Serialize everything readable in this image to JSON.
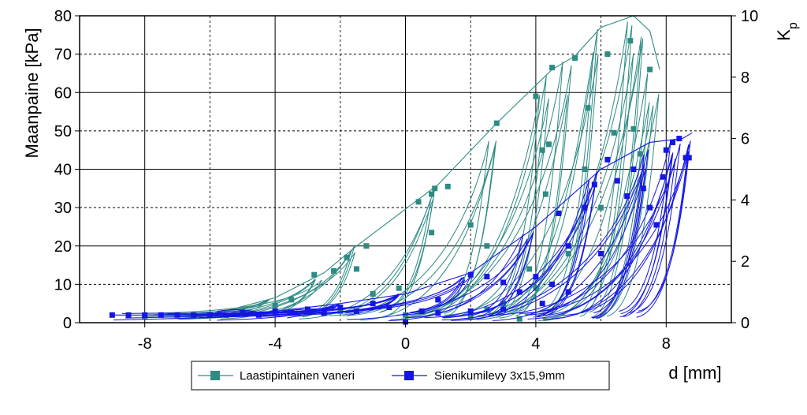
{
  "chart_data": {
    "type": "line",
    "xlabel": "d [mm]",
    "ylabel": "Maanpaine [kPa]",
    "y2label": "K",
    "y2label_sub": "p",
    "xlim": [
      -10,
      10
    ],
    "ylim": [
      0,
      80
    ],
    "y2lim": [
      0,
      10
    ],
    "xticks": [
      -8,
      -4,
      0,
      4,
      8
    ],
    "yticks": [
      0,
      10,
      20,
      30,
      40,
      50,
      60,
      70,
      80
    ],
    "y2ticks": [
      0,
      2,
      4,
      6,
      8,
      10
    ],
    "grid": true,
    "legend_position": "bottom-center",
    "series": [
      {
        "name": "Laastipintainen vaneri",
        "color": "#2e8b84",
        "marker": "square",
        "style": "hysteresis loops",
        "envelope": [
          {
            "x": -8.0,
            "y": 1.5
          },
          {
            "x": -6.0,
            "y": 2.0
          },
          {
            "x": -4.0,
            "y": 6.5
          },
          {
            "x": -2.5,
            "y": 13.0
          },
          {
            "x": -1.5,
            "y": 20.0
          },
          {
            "x": 1.0,
            "y": 36.0
          },
          {
            "x": 2.8,
            "y": 52.0
          },
          {
            "x": 4.5,
            "y": 66.0
          },
          {
            "x": 5.2,
            "y": 69.5
          },
          {
            "x": 6.0,
            "y": 77.0
          },
          {
            "x": 7.0,
            "y": 80.0
          },
          {
            "x": 7.5,
            "y": 76.0
          },
          {
            "x": 7.8,
            "y": 66.0
          }
        ],
        "markers": [
          {
            "x": -2.8,
            "y": 12.5
          },
          {
            "x": -2.2,
            "y": 13.5
          },
          {
            "x": -1.8,
            "y": 17.0
          },
          {
            "x": -1.5,
            "y": 14.0
          },
          {
            "x": -1.2,
            "y": 20.0
          },
          {
            "x": 0.8,
            "y": 33.5
          },
          {
            "x": 0.4,
            "y": 31.5
          },
          {
            "x": 0.9,
            "y": 35.0
          },
          {
            "x": 1.3,
            "y": 35.5
          },
          {
            "x": 2.8,
            "y": 52.0
          },
          {
            "x": 2.0,
            "y": 25.5
          },
          {
            "x": 4.0,
            "y": 59.0
          },
          {
            "x": 4.5,
            "y": 66.5
          },
          {
            "x": 5.2,
            "y": 69.0
          },
          {
            "x": 6.2,
            "y": 70.0
          },
          {
            "x": 6.9,
            "y": 73.5
          },
          {
            "x": 7.5,
            "y": 66.0
          },
          {
            "x": 5.6,
            "y": 56.0
          },
          {
            "x": 4.2,
            "y": 45.0
          },
          {
            "x": 4.4,
            "y": 46.5
          },
          {
            "x": 4.3,
            "y": 33.5
          },
          {
            "x": 6.4,
            "y": 49.5
          },
          {
            "x": 7.0,
            "y": 50.5
          },
          {
            "x": 7.2,
            "y": 44.0
          },
          {
            "x": 0.8,
            "y": 23.5
          },
          {
            "x": 2.5,
            "y": 20.0
          },
          {
            "x": -0.2,
            "y": 9.0
          },
          {
            "x": -1.0,
            "y": 7.5
          },
          {
            "x": 1.0,
            "y": 6.0
          },
          {
            "x": 3.0,
            "y": 5.0
          },
          {
            "x": 4.0,
            "y": 9.0
          },
          {
            "x": 5.0,
            "y": 18.0
          },
          {
            "x": 6.0,
            "y": 30.0
          },
          {
            "x": 5.5,
            "y": 40.0
          },
          {
            "x": -3.5,
            "y": 6.0
          },
          {
            "x": -5.0,
            "y": 3.0
          },
          {
            "x": -6.5,
            "y": 2.0
          },
          {
            "x": -8.0,
            "y": 1.5
          },
          {
            "x": -4.0,
            "y": 4.5
          },
          {
            "x": -2.0,
            "y": 3.0
          },
          {
            "x": 0.0,
            "y": 2.0
          },
          {
            "x": 2.0,
            "y": 1.5
          },
          {
            "x": 3.5,
            "y": 1.0
          },
          {
            "x": 2.5,
            "y": 3.5
          },
          {
            "x": 3.8,
            "y": 14.0
          }
        ]
      },
      {
        "name": "Sienikumilevy 3x15,9mm",
        "color": "#1515e6",
        "marker": "square",
        "style": "hysteresis loops",
        "envelope": [
          {
            "x": -9.0,
            "y": 2.0
          },
          {
            "x": -6.0,
            "y": 2.0
          },
          {
            "x": -4.0,
            "y": 3.0
          },
          {
            "x": -2.0,
            "y": 5.0
          },
          {
            "x": 0.0,
            "y": 7.5
          },
          {
            "x": 2.0,
            "y": 13.0
          },
          {
            "x": 4.0,
            "y": 25.0
          },
          {
            "x": 6.0,
            "y": 40.0
          },
          {
            "x": 7.5,
            "y": 47.0
          },
          {
            "x": 8.5,
            "y": 48.0
          },
          {
            "x": 8.8,
            "y": 49.5
          }
        ],
        "markers": [
          {
            "x": -9.0,
            "y": 2.0
          },
          {
            "x": -8.5,
            "y": 2.0
          },
          {
            "x": -8.0,
            "y": 2.0
          },
          {
            "x": -7.5,
            "y": 2.0
          },
          {
            "x": -7.0,
            "y": 2.0
          },
          {
            "x": -6.0,
            "y": 2.0
          },
          {
            "x": -5.0,
            "y": 2.5
          },
          {
            "x": -4.0,
            "y": 3.0
          },
          {
            "x": -3.0,
            "y": 3.5
          },
          {
            "x": -2.0,
            "y": 4.0
          },
          {
            "x": -1.0,
            "y": 5.0
          },
          {
            "x": 0.0,
            "y": 0.2
          },
          {
            "x": 1.0,
            "y": 6.0
          },
          {
            "x": 2.0,
            "y": 12.5
          },
          {
            "x": 2.5,
            "y": 12.0
          },
          {
            "x": 3.0,
            "y": 10.5
          },
          {
            "x": 3.5,
            "y": 8.0
          },
          {
            "x": 4.0,
            "y": 12.0
          },
          {
            "x": 4.5,
            "y": 10.0
          },
          {
            "x": 4.7,
            "y": 28.5
          },
          {
            "x": 5.0,
            "y": 20.0
          },
          {
            "x": 5.5,
            "y": 30.0
          },
          {
            "x": 5.8,
            "y": 36.0
          },
          {
            "x": 6.2,
            "y": 42.5
          },
          {
            "x": 6.5,
            "y": 37.0
          },
          {
            "x": 6.8,
            "y": 33.0
          },
          {
            "x": 7.0,
            "y": 40.0
          },
          {
            "x": 7.3,
            "y": 35.0
          },
          {
            "x": 7.5,
            "y": 30.0
          },
          {
            "x": 7.7,
            "y": 25.5
          },
          {
            "x": 7.9,
            "y": 38.0
          },
          {
            "x": 8.0,
            "y": 45.0
          },
          {
            "x": 8.2,
            "y": 47.0
          },
          {
            "x": 8.4,
            "y": 48.0
          },
          {
            "x": 8.6,
            "y": 43.0
          },
          {
            "x": 8.7,
            "y": 43.0
          },
          {
            "x": 6.0,
            "y": 18.0
          },
          {
            "x": 5.0,
            "y": 8.0
          },
          {
            "x": 4.2,
            "y": 5.0
          },
          {
            "x": 3.0,
            "y": 3.5
          },
          {
            "x": 2.0,
            "y": 3.0
          },
          {
            "x": 1.0,
            "y": 2.5
          },
          {
            "x": 0.5,
            "y": 3.0
          },
          {
            "x": -0.5,
            "y": 4.0
          },
          {
            "x": -1.5,
            "y": 3.0
          },
          {
            "x": -2.5,
            "y": 2.5
          },
          {
            "x": -3.5,
            "y": 2.5
          },
          {
            "x": -4.5,
            "y": 2.0
          },
          {
            "x": -5.5,
            "y": 2.0
          },
          {
            "x": -6.5,
            "y": 2.0
          }
        ]
      }
    ]
  }
}
